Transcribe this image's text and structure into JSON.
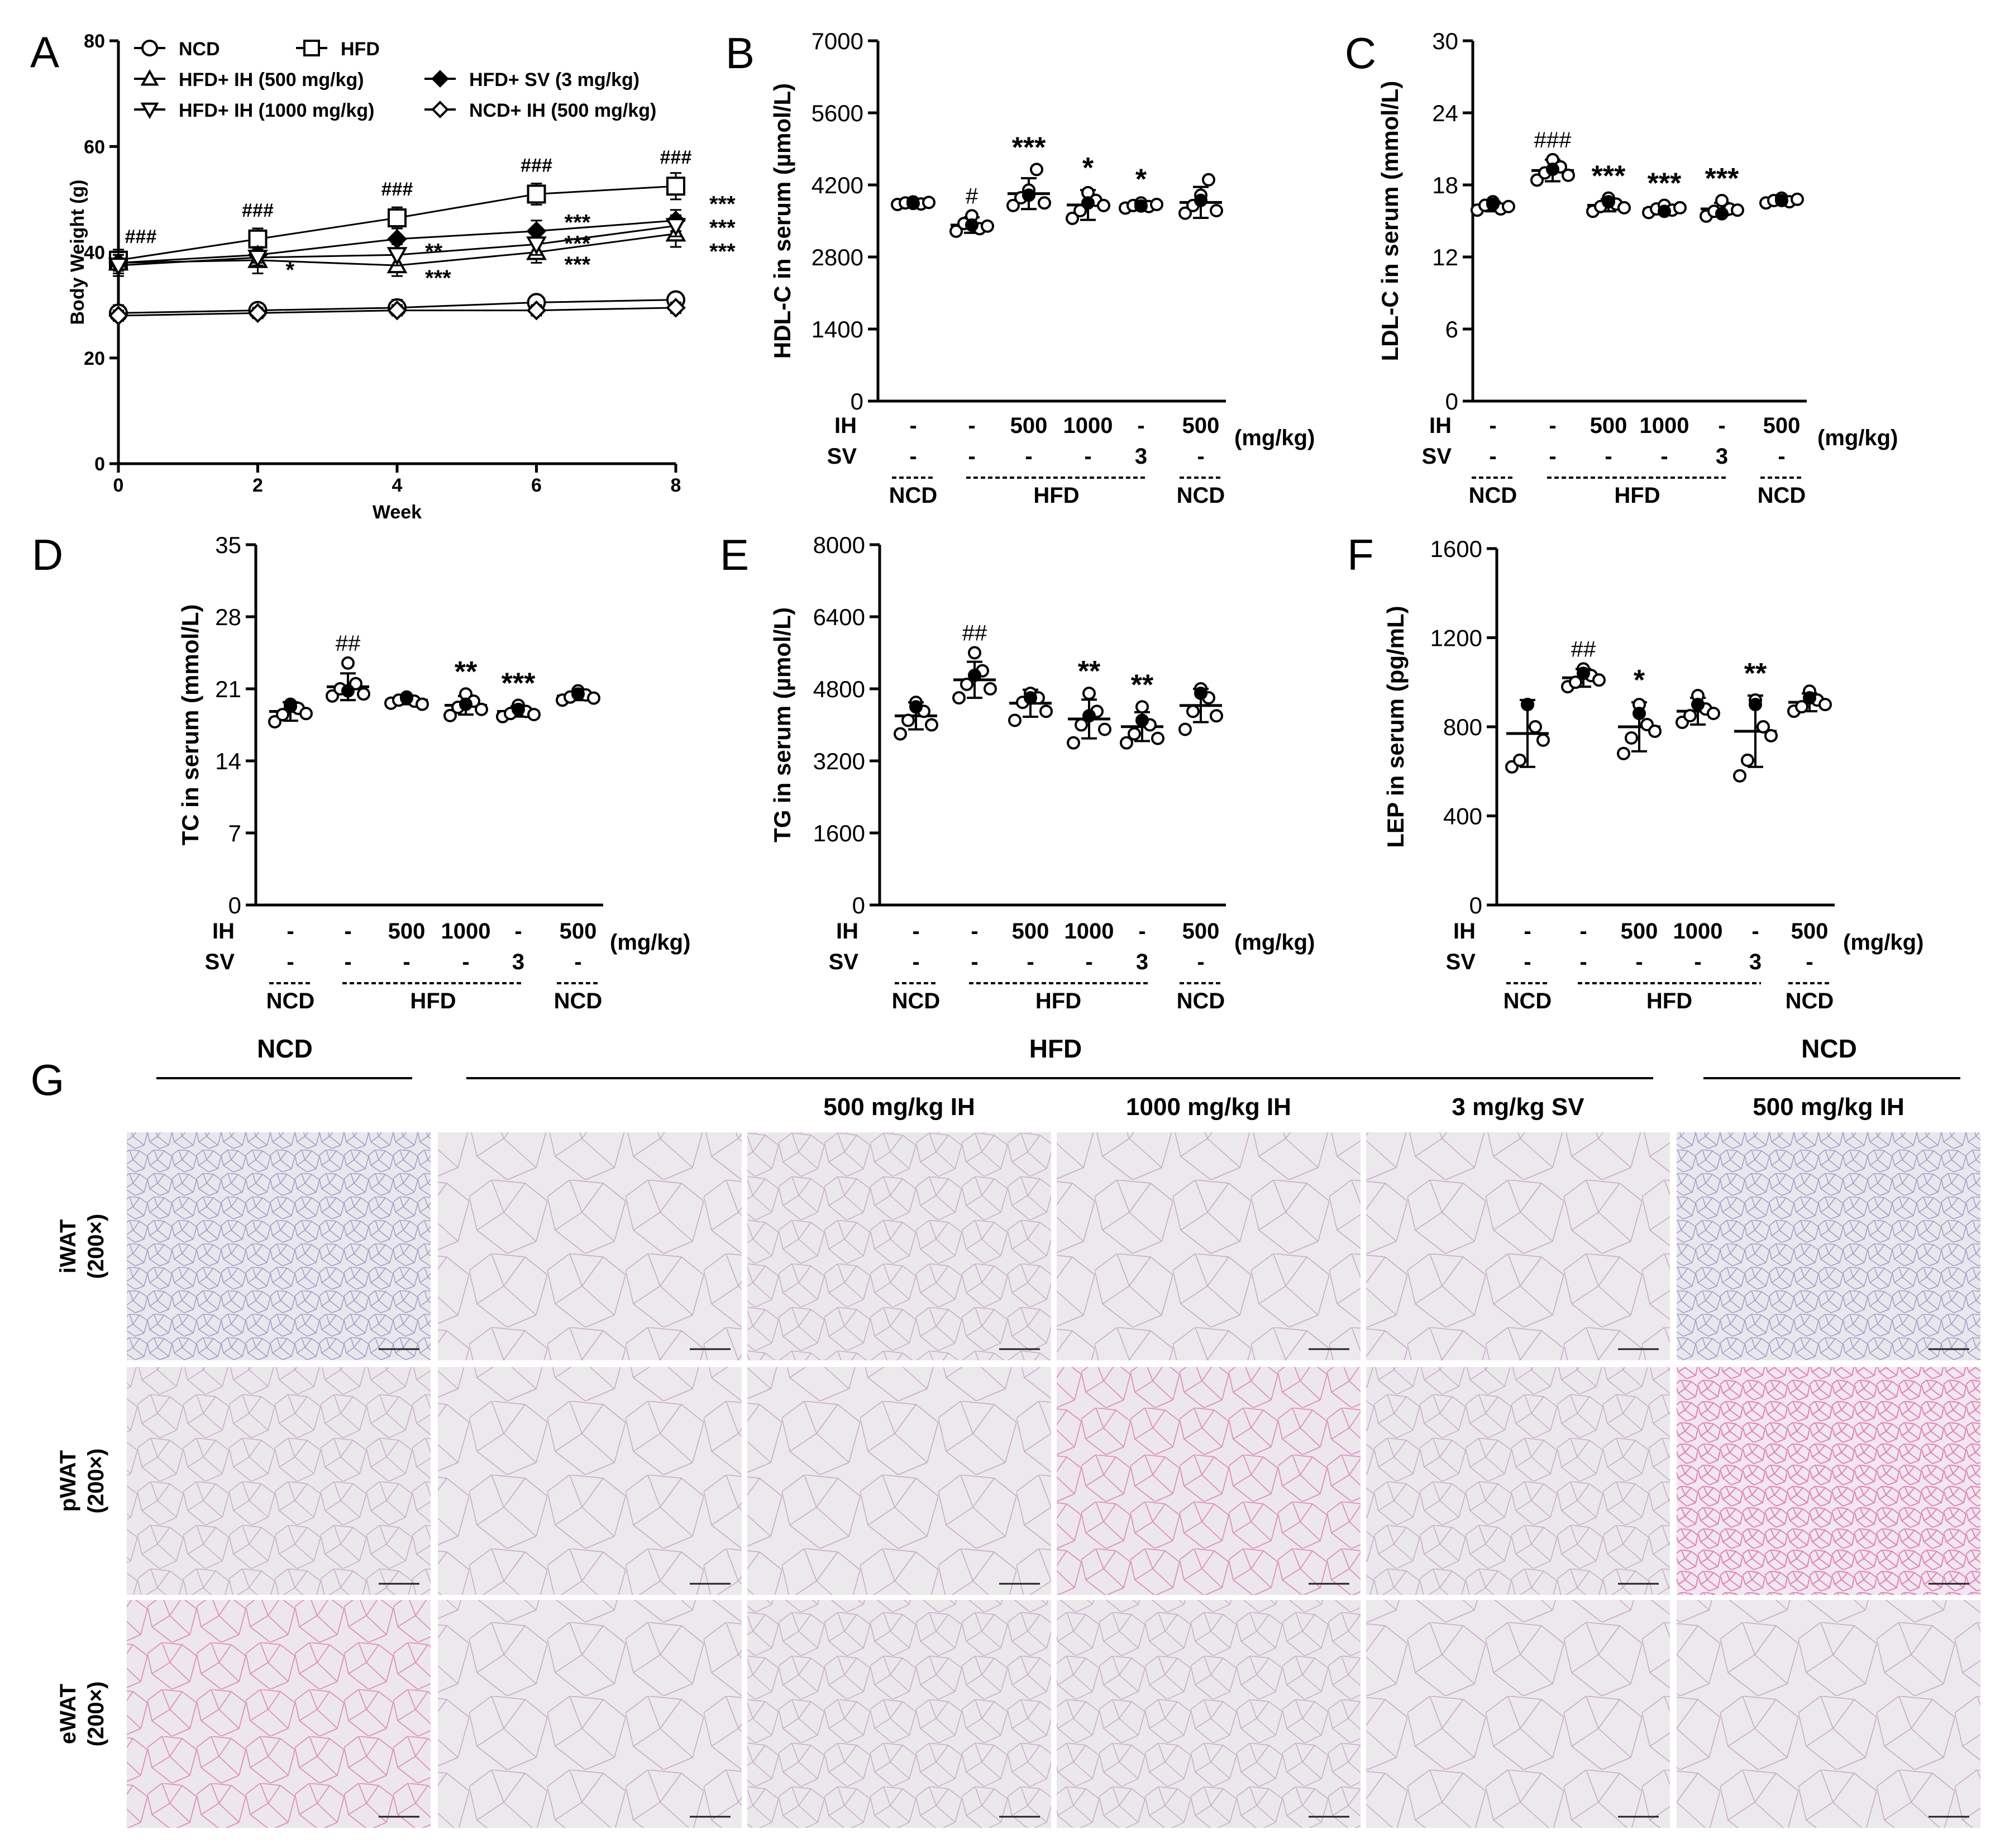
{
  "chart_data": [
    {
      "panel": "A",
      "type": "line",
      "xlabel": "Week",
      "ylabel": "Body Weight (g)",
      "xticks": [
        "0",
        "2",
        "4",
        "6",
        "8"
      ],
      "yticks": [
        "0",
        "20",
        "40",
        "60",
        "80"
      ],
      "xlim": [
        0,
        8
      ],
      "ylim": [
        0,
        80
      ],
      "legend": [
        {
          "name": "NCD",
          "marker": "circle-open"
        },
        {
          "name": "HFD",
          "marker": "square-open"
        },
        {
          "name": "HFD+ IH (500 mg/kg)",
          "marker": "triangle-up-open"
        },
        {
          "name": "HFD+ SV (3 mg/kg)",
          "marker": "diamond-filled"
        },
        {
          "name": "HFD+ IH (1000 mg/kg)",
          "marker": "triangle-down-open"
        },
        {
          "name": "NCD+ IH (500 mg/kg)",
          "marker": "diamond-open"
        }
      ],
      "series": [
        {
          "name": "NCD",
          "marker": "circle-open",
          "x": [
            0,
            2,
            4,
            6,
            8
          ],
          "y": [
            28.5,
            29.0,
            29.5,
            30.5,
            31.0
          ],
          "err": [
            1.5,
            1.0,
            1.5,
            1.0,
            1.0
          ]
        },
        {
          "name": "HFD",
          "marker": "square-open",
          "x": [
            0,
            2,
            4,
            6,
            8
          ],
          "y": [
            38.5,
            42.5,
            46.5,
            51.0,
            52.5
          ],
          "err": [
            2.0,
            2.0,
            2.0,
            2.0,
            2.5
          ]
        },
        {
          "name": "HFD+ IH (500 mg/kg)",
          "marker": "triangle-up-open",
          "x": [
            0,
            2,
            4,
            6,
            8
          ],
          "y": [
            38.0,
            38.5,
            37.5,
            40.0,
            43.5
          ],
          "err": [
            2.0,
            2.5,
            2.0,
            2.0,
            2.5
          ]
        },
        {
          "name": "HFD+ SV (3 mg/kg)",
          "marker": "diamond-filled",
          "x": [
            0,
            2,
            4,
            6,
            8
          ],
          "y": [
            38.0,
            39.5,
            42.5,
            44.0,
            46.0
          ],
          "err": [
            1.5,
            1.5,
            2.0,
            2.0,
            2.0
          ]
        },
        {
          "name": "HFD+ IH (1000 mg/kg)",
          "marker": "triangle-down-open",
          "x": [
            0,
            2,
            4,
            6,
            8
          ],
          "y": [
            37.5,
            39.0,
            39.5,
            41.5,
            45.0
          ],
          "err": [
            2.0,
            1.5,
            2.0,
            2.0,
            2.0
          ]
        },
        {
          "name": "NCD+ IH (500 mg/kg)",
          "marker": "diamond-open",
          "x": [
            0,
            2,
            4,
            6,
            8
          ],
          "y": [
            28.0,
            28.5,
            29.0,
            29.0,
            29.5
          ],
          "err": [
            1.0,
            1.0,
            1.0,
            1.0,
            1.0
          ]
        }
      ],
      "annotations": [
        {
          "text": "###",
          "x": 0,
          "y": 43
        },
        {
          "text": "###",
          "x": 2,
          "y": 48
        },
        {
          "text": "###",
          "x": 4,
          "y": 52
        },
        {
          "text": "###",
          "x": 6,
          "y": 56.5
        },
        {
          "text": "###",
          "x": 8,
          "y": 58
        },
        {
          "text": "*",
          "x": 2,
          "y": 36.5
        },
        {
          "text": "**",
          "x": 4,
          "y": 40
        },
        {
          "text": "***",
          "x": 4,
          "y": 35
        },
        {
          "text": "***",
          "x": 6,
          "y": 45.5
        },
        {
          "text": "***",
          "x": 6,
          "y": 41.5
        },
        {
          "text": "***",
          "x": 6,
          "y": 37.5
        },
        {
          "text": "***",
          "x": 8,
          "y": 49
        },
        {
          "text": "***",
          "x": 8,
          "y": 44.5
        },
        {
          "text": "***",
          "x": 8,
          "y": 40
        }
      ]
    },
    {
      "panel": "B",
      "type": "scatter",
      "ylabel": "HDL-C in serum (µmol/L)",
      "yticks": [
        "0",
        "1400",
        "2800",
        "4200",
        "5600",
        "7000"
      ],
      "ylim": [
        0,
        7000
      ],
      "means": [
        3850,
        3420,
        4030,
        3810,
        3810,
        3860
      ],
      "sd": [
        40,
        150,
        300,
        290,
        70,
        300
      ],
      "points": [
        [
          3820,
          3850,
          3870,
          3830,
          3860,
          3840
        ],
        [
          3300,
          3450,
          3600,
          3350,
          3400,
          3420
        ],
        [
          3800,
          3950,
          4100,
          4500,
          3850,
          4000
        ],
        [
          3550,
          3700,
          4050,
          3900,
          3800,
          3850
        ],
        [
          3750,
          3800,
          3850,
          3780,
          3820,
          3790
        ],
        [
          3650,
          3800,
          4000,
          4300,
          3700,
          3900
        ]
      ],
      "signif": [
        "",
        "#",
        "***",
        "*",
        "*",
        ""
      ]
    },
    {
      "panel": "C",
      "type": "scatter",
      "ylabel": "LDL-C in serum (mmol/L)",
      "yticks": [
        "0",
        "6",
        "12",
        "18",
        "24",
        "30"
      ],
      "ylim": [
        0,
        30
      ],
      "means": [
        16.2,
        19.2,
        16.3,
        16.0,
        16.0,
        16.7
      ],
      "sd": [
        0.4,
        0.9,
        0.5,
        0.3,
        0.5,
        0.2
      ],
      "points": [
        [
          15.9,
          16.3,
          16.6,
          16.0,
          16.2,
          16.4
        ],
        [
          18.4,
          19.0,
          20.1,
          19.5,
          18.8,
          19.3
        ],
        [
          15.8,
          16.2,
          16.9,
          16.4,
          16.1,
          16.6
        ],
        [
          15.7,
          16.0,
          16.3,
          15.9,
          16.1,
          15.8
        ],
        [
          15.4,
          15.8,
          16.7,
          16.0,
          15.9,
          15.6
        ],
        [
          16.5,
          16.7,
          16.9,
          16.6,
          16.8,
          16.7
        ]
      ],
      "signif": [
        "",
        "###",
        "***",
        "***",
        "***",
        ""
      ]
    },
    {
      "panel": "D",
      "type": "scatter",
      "ylabel": "TC in serum (mmol/L)",
      "yticks": [
        "0",
        "7",
        "14",
        "21",
        "28",
        "35"
      ],
      "ylim": [
        0,
        35
      ],
      "means": [
        18.8,
        21.2,
        19.9,
        19.4,
        18.8,
        20.3
      ],
      "sd": [
        0.9,
        1.3,
        0.4,
        0.9,
        0.5,
        0.4
      ],
      "points": [
        [
          17.8,
          18.5,
          19.5,
          19.1,
          18.6,
          19.3
        ],
        [
          20.3,
          21.0,
          23.5,
          21.5,
          20.5,
          20.8
        ],
        [
          19.6,
          19.9,
          20.2,
          19.8,
          19.5,
          20.1
        ],
        [
          18.4,
          19.2,
          20.5,
          19.8,
          19.0,
          19.5
        ],
        [
          18.3,
          18.6,
          19.4,
          18.8,
          18.5,
          19.0
        ],
        [
          19.9,
          20.2,
          20.8,
          20.4,
          20.1,
          20.5
        ]
      ],
      "signif": [
        "",
        "##",
        "",
        "**",
        "***",
        ""
      ]
    },
    {
      "panel": "E",
      "type": "scatter",
      "ylabel": "TG in serum (µmol/L)",
      "yticks": [
        "0",
        "1600",
        "3200",
        "4800",
        "6400",
        "8000"
      ],
      "ylim": [
        0,
        8000
      ],
      "means": [
        4200,
        5000,
        4480,
        4130,
        3960,
        4430
      ],
      "sd": [
        300,
        400,
        300,
        430,
        320,
        370
      ],
      "points": [
        [
          3800,
          4100,
          4500,
          4300,
          4000,
          4400
        ],
        [
          4600,
          4900,
          5600,
          5200,
          4800,
          5100
        ],
        [
          4100,
          4500,
          4700,
          4600,
          4300,
          4600
        ],
        [
          3600,
          4000,
          4700,
          4300,
          3900,
          4200
        ],
        [
          3600,
          3800,
          4400,
          4000,
          3700,
          4100
        ],
        [
          3900,
          4300,
          4800,
          4600,
          4200,
          4700
        ]
      ],
      "signif": [
        "",
        "##",
        "",
        "**",
        "**",
        ""
      ]
    },
    {
      "panel": "F",
      "type": "scatter",
      "ylabel": "LEP in serum (pg/mL)",
      "yticks": [
        "0",
        "400",
        "800",
        "1200",
        "1600"
      ],
      "ylim": [
        0,
        1600
      ],
      "means": [
        770,
        1020,
        800,
        870,
        780,
        910
      ],
      "sd": [
        150,
        40,
        110,
        60,
        160,
        40
      ],
      "points": [
        [
          620,
          650,
          900,
          800,
          740,
          900
        ],
        [
          980,
          1000,
          1060,
          1030,
          1010,
          1040
        ],
        [
          680,
          750,
          900,
          810,
          780,
          860
        ],
        [
          820,
          850,
          940,
          880,
          860,
          900
        ],
        [
          580,
          650,
          920,
          800,
          760,
          900
        ],
        [
          870,
          890,
          960,
          920,
          900,
          930
        ]
      ],
      "signif": [
        "",
        "##",
        "*",
        "",
        "**",
        ""
      ]
    }
  ],
  "bar_axis": {
    "ih_label": "IH",
    "sv_label": "SV",
    "unit": "(mg/kg)",
    "ih_values": [
      "-",
      "-",
      "500",
      "1000",
      "-",
      "500"
    ],
    "sv_values": [
      "-",
      "-",
      "-",
      "-",
      "3",
      "-"
    ],
    "groups": [
      "NCD",
      "HFD",
      "NCD"
    ]
  },
  "panels": [
    "A",
    "B",
    "C",
    "D",
    "E",
    "F",
    "G"
  ],
  "histology": {
    "top_groups": [
      "NCD",
      "HFD",
      "NCD"
    ],
    "column_labels": [
      "",
      "",
      "500 mg/kg IH",
      "1000 mg/kg IH",
      "3 mg/kg SV",
      "500 mg/kg IH"
    ],
    "rows": [
      {
        "tissue": "iWAT",
        "mag": "(200×)"
      },
      {
        "tissue": "pWAT",
        "mag": "(200×)"
      },
      {
        "tissue": "eWAT",
        "mag": "(200×)"
      }
    ],
    "stain_bg": "#e7e5e8",
    "stain_pink": "#d879b4",
    "stain_purple": "#8c6bb7"
  }
}
